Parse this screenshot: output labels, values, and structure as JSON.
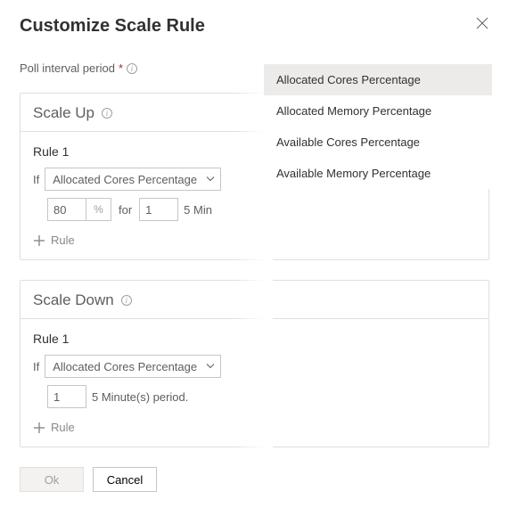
{
  "header": {
    "title": "Customize Scale Rule"
  },
  "poll": {
    "label": "Poll interval period",
    "required": "*"
  },
  "scale_up": {
    "title": "Scale Up",
    "rule_label": "Rule 1",
    "if_label": "If",
    "metric": "Allocated Cores Percentage",
    "threshold": "80",
    "pct": "%",
    "for_label": "for",
    "duration": "1",
    "period_suffix": "5 Min",
    "add_rule": "Rule"
  },
  "scale_down": {
    "title": "Scale Down",
    "rule_label": "Rule 1",
    "if_label": "If",
    "metric": "Allocated Cores Percentage",
    "duration": "1",
    "period_suffix": "5 Minute(s) period.",
    "add_rule": "Rule"
  },
  "footer": {
    "ok": "Ok",
    "cancel": "Cancel"
  },
  "dropdown": {
    "items": [
      "Allocated Cores Percentage",
      "Allocated Memory Percentage",
      "Available Cores Percentage",
      "Available Memory Percentage"
    ],
    "selected_index": 0
  }
}
